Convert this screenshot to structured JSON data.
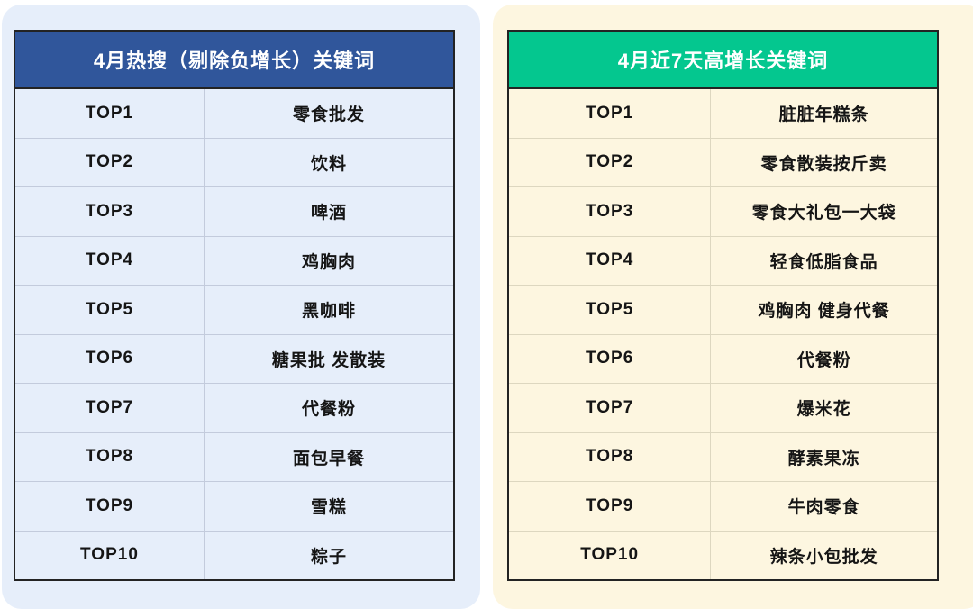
{
  "colors": {
    "page_bg": "#ffffff",
    "left_panel_bg": "#e6eefa",
    "right_panel_bg": "#fdf6e0",
    "left_header_bg": "#30569b",
    "right_header_bg": "#04c78f",
    "header_text": "#ffffff",
    "row_text": "#151515",
    "table_border": "#232323"
  },
  "left_table": {
    "title": "4月热搜（剔除负增长）关键词",
    "rows": [
      {
        "rank": "TOP1",
        "keyword": "零食批发"
      },
      {
        "rank": "TOP2",
        "keyword": "饮料"
      },
      {
        "rank": "TOP3",
        "keyword": "啤酒"
      },
      {
        "rank": "TOP4",
        "keyword": "鸡胸肉"
      },
      {
        "rank": "TOP5",
        "keyword": "黑咖啡"
      },
      {
        "rank": "TOP6",
        "keyword": "糖果批 发散装"
      },
      {
        "rank": "TOP7",
        "keyword": "代餐粉"
      },
      {
        "rank": "TOP8",
        "keyword": "面包早餐"
      },
      {
        "rank": "TOP9",
        "keyword": "雪糕"
      },
      {
        "rank": "TOP10",
        "keyword": "粽子"
      }
    ]
  },
  "right_table": {
    "title": "4月近7天高增长关键词",
    "rows": [
      {
        "rank": "TOP1",
        "keyword": "脏脏年糕条"
      },
      {
        "rank": "TOP2",
        "keyword": "零食散装按斤卖"
      },
      {
        "rank": "TOP3",
        "keyword": "零食大礼包一大袋"
      },
      {
        "rank": "TOP4",
        "keyword": "轻食低脂食品"
      },
      {
        "rank": "TOP5",
        "keyword": "鸡胸肉 健身代餐"
      },
      {
        "rank": "TOP6",
        "keyword": "代餐粉"
      },
      {
        "rank": "TOP7",
        "keyword": "爆米花"
      },
      {
        "rank": "TOP8",
        "keyword": "酵素果冻"
      },
      {
        "rank": "TOP9",
        "keyword": "牛肉零食"
      },
      {
        "rank": "TOP10",
        "keyword": "辣条小包批发"
      }
    ]
  },
  "chart_data": [
    {
      "type": "table",
      "title": "4月热搜（剔除负增长）关键词",
      "rows": [
        [
          "TOP1",
          "零食批发"
        ],
        [
          "TOP2",
          "饮料"
        ],
        [
          "TOP3",
          "啤酒"
        ],
        [
          "TOP4",
          "鸡胸肉"
        ],
        [
          "TOP5",
          "黑咖啡"
        ],
        [
          "TOP6",
          "糖果批 发散装"
        ],
        [
          "TOP7",
          "代餐粉"
        ],
        [
          "TOP8",
          "面包早餐"
        ],
        [
          "TOP9",
          "雪糕"
        ],
        [
          "TOP10",
          "粽子"
        ]
      ]
    },
    {
      "type": "table",
      "title": "4月近7天高增长关键词",
      "rows": [
        [
          "TOP1",
          "脏脏年糕条"
        ],
        [
          "TOP2",
          "零食散装按斤卖"
        ],
        [
          "TOP3",
          "零食大礼包一大袋"
        ],
        [
          "TOP4",
          "轻食低脂食品"
        ],
        [
          "TOP5",
          "鸡胸肉 健身代餐"
        ],
        [
          "TOP6",
          "代餐粉"
        ],
        [
          "TOP7",
          "爆米花"
        ],
        [
          "TOP8",
          "酵素果冻"
        ],
        [
          "TOP9",
          "牛肉零食"
        ],
        [
          "TOP10",
          "辣条小包批发"
        ]
      ]
    }
  ]
}
